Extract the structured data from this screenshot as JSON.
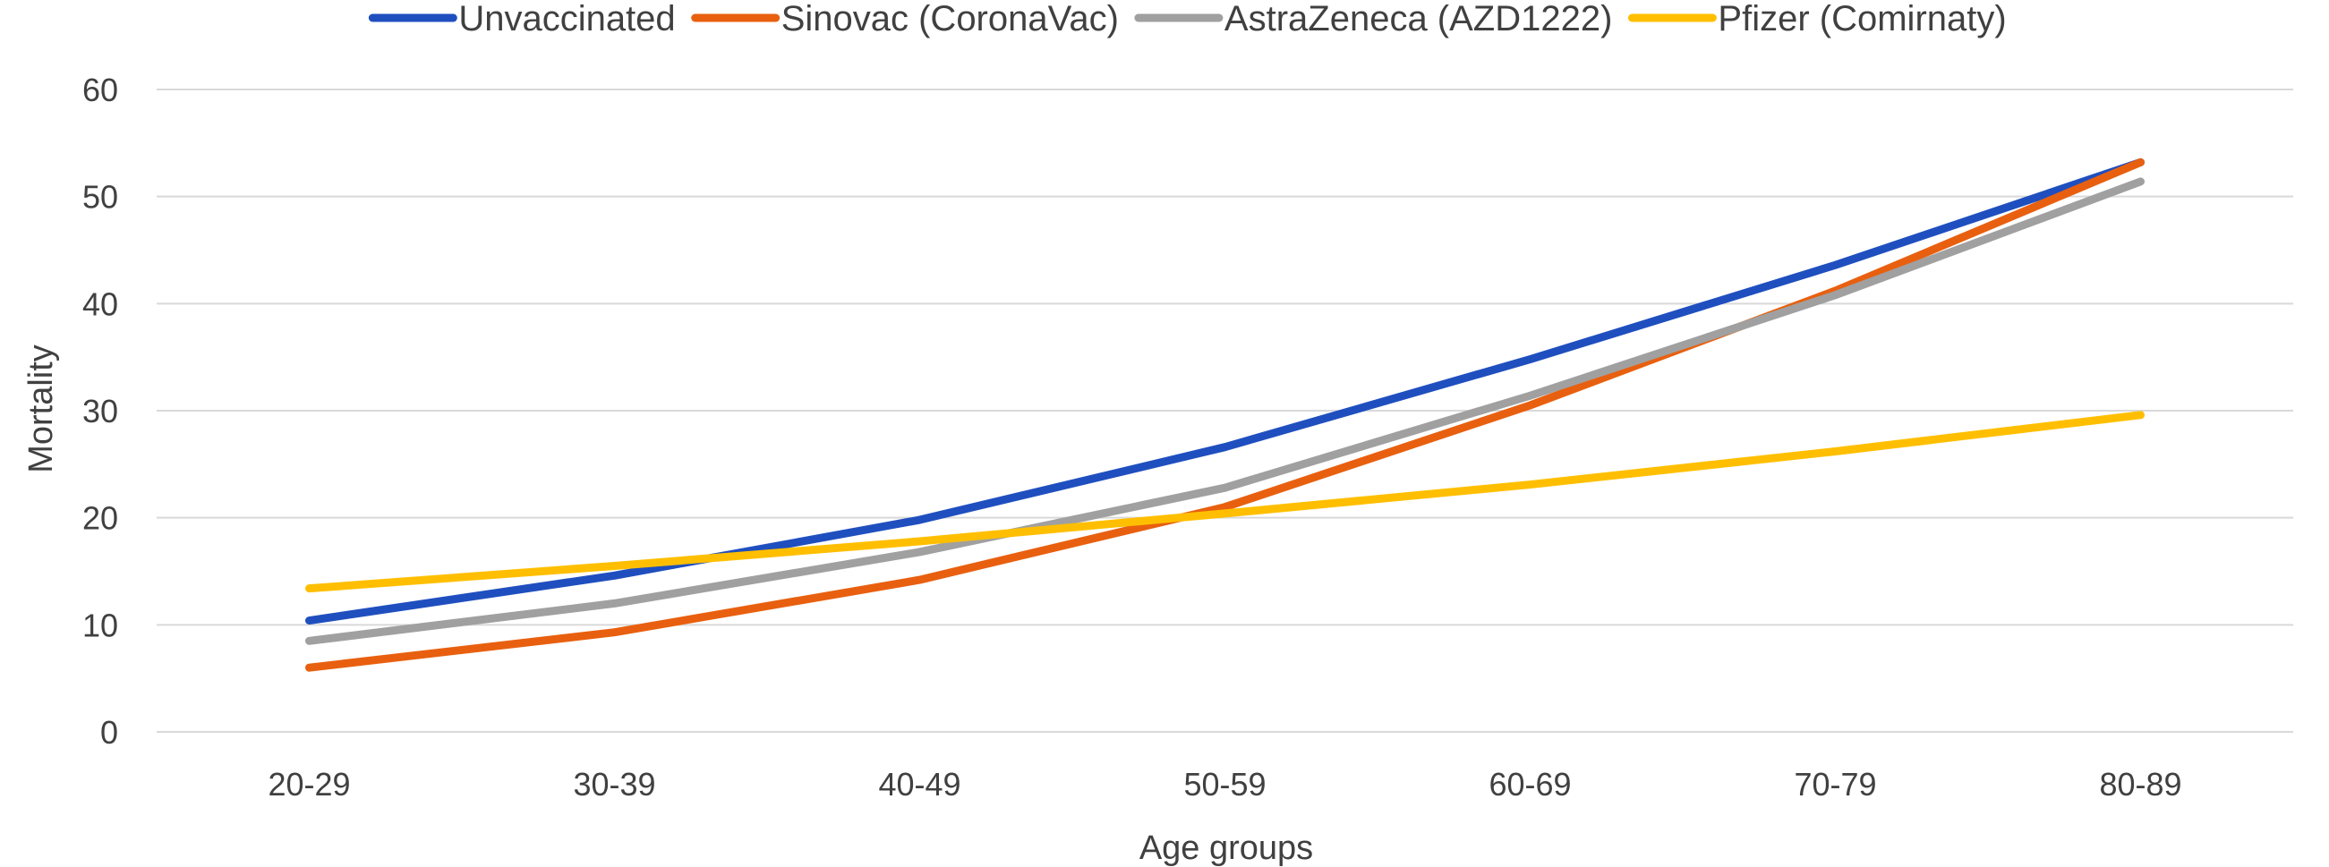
{
  "chart_data": {
    "type": "line",
    "title": "",
    "xlabel": "Age groups",
    "ylabel": "Mortality",
    "ylim": [
      0,
      60
    ],
    "yticks": [
      0,
      10,
      20,
      30,
      40,
      50,
      60
    ],
    "grid": true,
    "legend_position": "top",
    "categories": [
      "20-29",
      "30-39",
      "40-49",
      "50-59",
      "60-69",
      "70-79",
      "80-89"
    ],
    "series": [
      {
        "name": "Unvaccinated",
        "color": "#1f4fbf",
        "values": [
          10.4,
          14.6,
          19.8,
          26.6,
          34.8,
          43.6,
          53.2
        ]
      },
      {
        "name": "Sinovac (CoronaVac)",
        "color": "#e8600f",
        "values": [
          6.0,
          9.3,
          14.2,
          21.0,
          30.5,
          41.2,
          53.2
        ]
      },
      {
        "name": "AstraZeneca (AZD1222)",
        "color": "#a0a0a0",
        "values": [
          8.5,
          12.0,
          16.8,
          22.8,
          31.4,
          40.8,
          51.4
        ]
      },
      {
        "name": "Pfizer (Comirnaty)",
        "color": "#ffbf00",
        "values": [
          13.4,
          15.5,
          17.8,
          20.4,
          23.1,
          26.2,
          29.6
        ]
      }
    ]
  }
}
